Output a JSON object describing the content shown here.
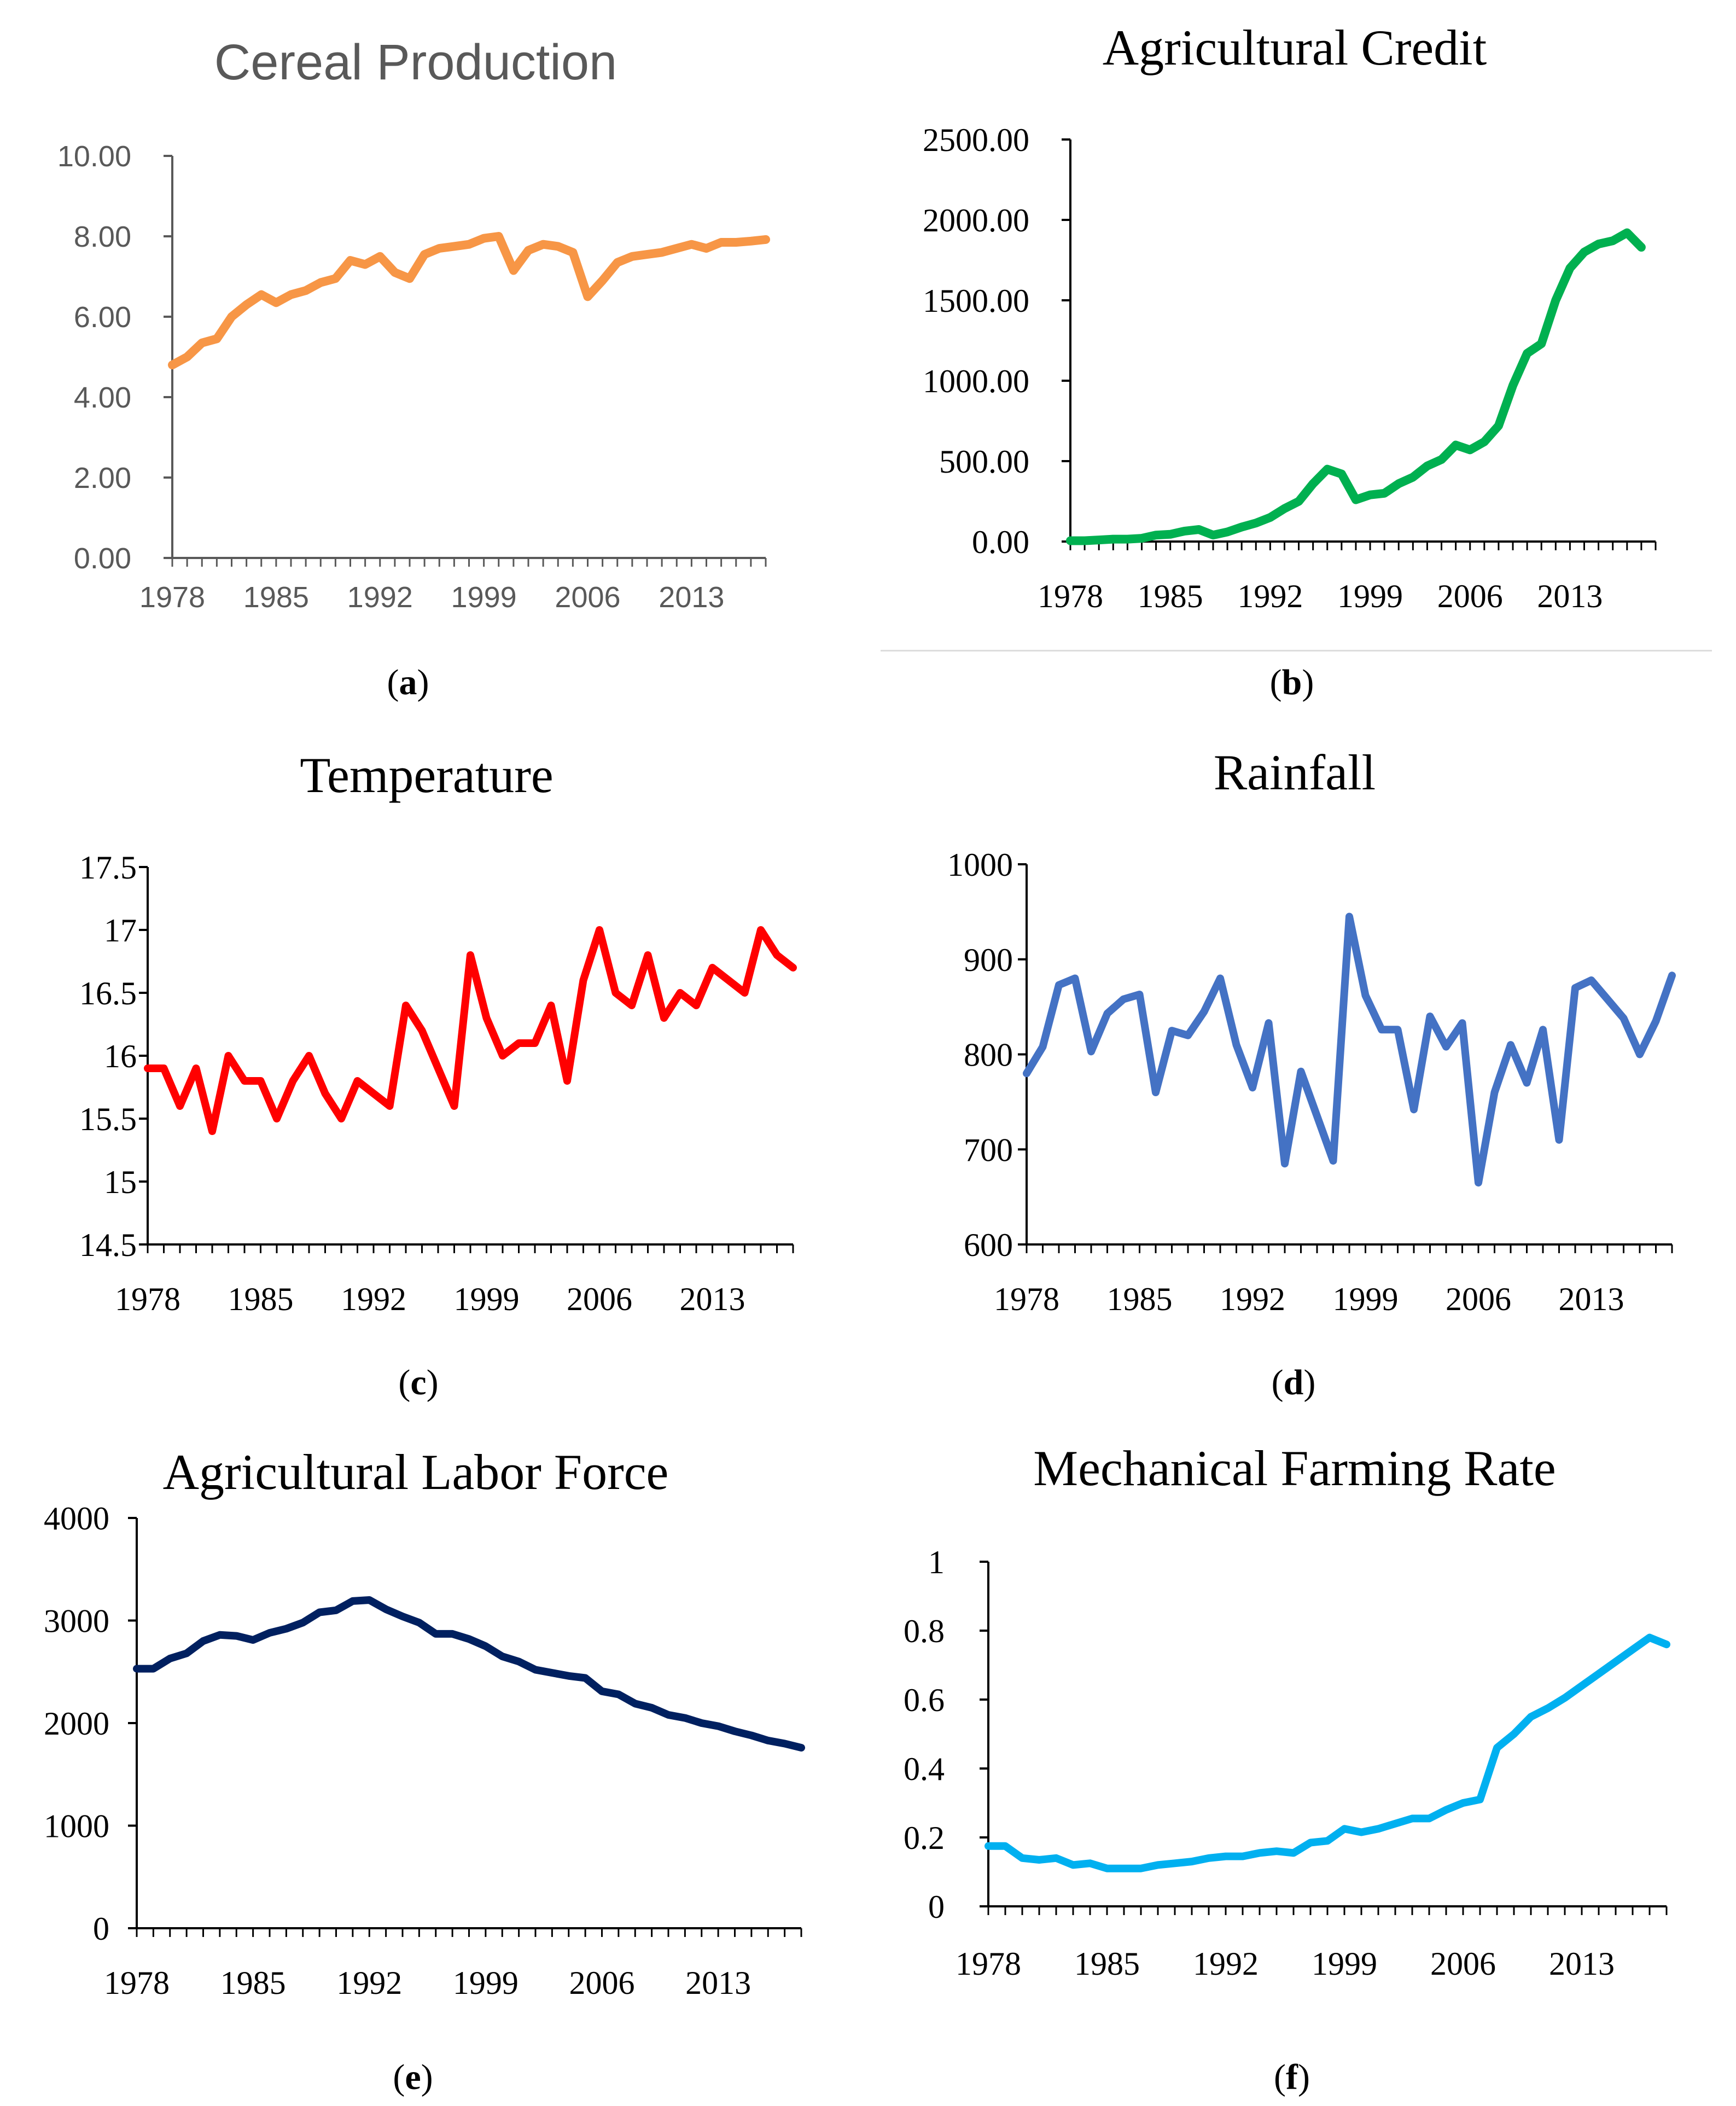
{
  "panels": [
    {
      "caption": "a",
      "chart_data": {
        "type": "line",
        "title": "Cereal Production",
        "xlabel": "",
        "ylabel": "",
        "ylim": [
          0,
          10
        ],
        "y_ticks": [
          "0.00",
          "2.00",
          "4.00",
          "6.00",
          "8.00",
          "10.00"
        ],
        "x_ticks": [
          "1978",
          "1985",
          "1992",
          "1999",
          "2006",
          "2013"
        ],
        "xlim": [
          1978,
          2018
        ],
        "color": "#F79646",
        "series": [
          {
            "x": [
              1978,
              1979,
              1980,
              1981,
              1982,
              1983,
              1984,
              1985,
              1986,
              1987,
              1988,
              1989,
              1990,
              1991,
              1992,
              1993,
              1994,
              1995,
              1996,
              1997,
              1998,
              1999,
              2000,
              2001,
              2002,
              2003,
              2004,
              2005,
              2006,
              2007,
              2008,
              2009,
              2010,
              2011,
              2012,
              2013,
              2014,
              2015,
              2016,
              2017,
              2018
            ],
            "values": [
              4.8,
              5.0,
              5.35,
              5.45,
              6.0,
              6.3,
              6.55,
              6.35,
              6.55,
              6.65,
              6.85,
              6.95,
              7.4,
              7.3,
              7.5,
              7.1,
              6.95,
              7.55,
              7.7,
              7.75,
              7.8,
              7.95,
              8.0,
              7.15,
              7.65,
              7.8,
              7.75,
              7.6,
              6.5,
              6.9,
              7.35,
              7.5,
              7.55,
              7.6,
              7.7,
              7.8,
              7.7,
              7.85,
              7.85,
              7.88,
              7.92
            ]
          }
        ]
      }
    },
    {
      "caption": "b",
      "chart_data": {
        "type": "line",
        "title": "Agricultural Credit",
        "xlabel": "",
        "ylabel": "",
        "ylim": [
          0,
          2500
        ],
        "y_ticks": [
          "0.00",
          "500.00",
          "1000.00",
          "1500.00",
          "2000.00",
          "2500.00"
        ],
        "x_ticks": [
          "1978",
          "1985",
          "1992",
          "1999",
          "2006",
          "2013"
        ],
        "xlim": [
          1978,
          2019
        ],
        "color": "#00B050",
        "series": [
          {
            "x": [
              1978,
              1979,
              1980,
              1981,
              1982,
              1983,
              1984,
              1985,
              1986,
              1987,
              1988,
              1989,
              1990,
              1991,
              1992,
              1993,
              1994,
              1995,
              1996,
              1997,
              1998,
              1999,
              2000,
              2001,
              2002,
              2003,
              2004,
              2005,
              2006,
              2007,
              2008,
              2009,
              2010,
              2011,
              2012,
              2013,
              2014,
              2015,
              2016,
              2017,
              2018
            ],
            "values": [
              5,
              5,
              10,
              15,
              15,
              20,
              40,
              45,
              65,
              75,
              40,
              60,
              90,
              115,
              150,
              205,
              250,
              360,
              450,
              420,
              260,
              290,
              300,
              360,
              400,
              470,
              510,
              600,
              570,
              620,
              720,
              970,
              1170,
              1230,
              1500,
              1700,
              1800,
              1850,
              1870,
              1920,
              1830
            ]
          }
        ]
      }
    },
    {
      "caption": "c",
      "chart_data": {
        "type": "line",
        "title": "Temperature",
        "xlabel": "",
        "ylabel": "",
        "ylim": [
          14.5,
          17.5
        ],
        "y_ticks": [
          "14.5",
          "15",
          "15.5",
          "16",
          "16.5",
          "17",
          "17.5"
        ],
        "x_ticks": [
          "1978",
          "1985",
          "1992",
          "1999",
          "2006",
          "2013"
        ],
        "xlim": [
          1978,
          2018
        ],
        "color": "#FF0000",
        "series": [
          {
            "x": [
              1978,
              1979,
              1980,
              1981,
              1982,
              1983,
              1984,
              1985,
              1986,
              1987,
              1988,
              1989,
              1990,
              1991,
              1992,
              1993,
              1994,
              1995,
              1996,
              1997,
              1998,
              1999,
              2000,
              2001,
              2002,
              2003,
              2004,
              2005,
              2006,
              2007,
              2008,
              2009,
              2010,
              2011,
              2012,
              2013,
              2014,
              2015,
              2016,
              2017,
              2018
            ],
            "values": [
              15.9,
              15.9,
              15.6,
              15.9,
              15.4,
              16.0,
              15.8,
              15.8,
              15.5,
              15.8,
              16.0,
              15.7,
              15.5,
              15.8,
              15.7,
              15.6,
              16.4,
              16.2,
              15.9,
              15.6,
              16.8,
              16.3,
              16.0,
              16.1,
              16.1,
              16.4,
              15.8,
              16.6,
              17.0,
              16.5,
              16.4,
              16.8,
              16.3,
              16.5,
              16.4,
              16.7,
              16.6,
              16.5,
              17.0,
              16.8,
              16.7
            ]
          }
        ]
      }
    },
    {
      "caption": "d",
      "chart_data": {
        "type": "line",
        "title": "Rainfall",
        "xlabel": "",
        "ylabel": "",
        "ylim": [
          600,
          1000
        ],
        "y_ticks": [
          "600",
          "700",
          "800",
          "900",
          "1000"
        ],
        "x_ticks": [
          "1978",
          "1985",
          "1992",
          "1999",
          "2006",
          "2013"
        ],
        "xlim": [
          1978,
          2018
        ],
        "color": "#4472C4",
        "series": [
          {
            "x": [
              1978,
              1979,
              1980,
              1981,
              1982,
              1983,
              1984,
              1985,
              1986,
              1987,
              1988,
              1989,
              1990,
              1991,
              1992,
              1993,
              1994,
              1995,
              1996,
              1997,
              1998,
              1999,
              2000,
              2001,
              2002,
              2003,
              2004,
              2005,
              2006,
              2007,
              2008,
              2009,
              2010,
              2011,
              2012,
              2013,
              2014,
              2015,
              2016,
              2017,
              2018
            ],
            "values": [
              780,
              808,
              873,
              880,
              803,
              843,
              858,
              863,
              760,
              825,
              820,
              845,
              880,
              810,
              765,
              833,
              685,
              782,
              735,
              688,
              945,
              862,
              826,
              826,
              742,
              840,
              808,
              833,
              665,
              760,
              810,
              770,
              826,
              710,
              870,
              878,
              858,
              838,
              800,
              835,
              883
            ]
          }
        ]
      }
    },
    {
      "caption": "e",
      "chart_data": {
        "type": "line",
        "title": "Agricultural Labor Force",
        "xlabel": "",
        "ylabel": "",
        "ylim": [
          0,
          4000
        ],
        "y_ticks": [
          "0",
          "1000",
          "2000",
          "3000",
          "4000"
        ],
        "x_ticks": [
          "1978",
          "1985",
          "1992",
          "1999",
          "2006",
          "2013"
        ],
        "xlim": [
          1978,
          2018
        ],
        "color": "#002060",
        "series": [
          {
            "x": [
              1978,
              1979,
              1980,
              1981,
              1982,
              1983,
              1984,
              1985,
              1986,
              1987,
              1988,
              1989,
              1990,
              1991,
              1992,
              1993,
              1994,
              1995,
              1996,
              1997,
              1998,
              1999,
              2000,
              2001,
              2002,
              2003,
              2004,
              2005,
              2006,
              2007,
              2008,
              2009,
              2010,
              2011,
              2012,
              2013,
              2014,
              2015,
              2016,
              2017,
              2018
            ],
            "values": [
              2530,
              2530,
              2630,
              2680,
              2800,
              2860,
              2850,
              2810,
              2880,
              2920,
              2980,
              3080,
              3100,
              3190,
              3200,
              3110,
              3040,
              2980,
              2870,
              2870,
              2820,
              2750,
              2650,
              2600,
              2520,
              2490,
              2460,
              2440,
              2310,
              2280,
              2190,
              2150,
              2080,
              2050,
              2000,
              1970,
              1920,
              1880,
              1830,
              1800,
              1760
            ]
          }
        ]
      }
    },
    {
      "caption": "f",
      "chart_data": {
        "type": "line",
        "title": "Mechanical Farming Rate",
        "xlabel": "",
        "ylabel": "",
        "ylim": [
          0,
          1
        ],
        "y_ticks": [
          "0",
          "0.2",
          "0.4",
          "0.6",
          "0.8",
          "1"
        ],
        "x_ticks": [
          "1978",
          "1985",
          "1992",
          "1999",
          "2006",
          "2013"
        ],
        "xlim": [
          1978,
          2018
        ],
        "color": "#00B0F0",
        "series": [
          {
            "x": [
              1978,
              1979,
              1980,
              1981,
              1982,
              1983,
              1984,
              1985,
              1986,
              1987,
              1988,
              1989,
              1990,
              1991,
              1992,
              1993,
              1994,
              1995,
              1996,
              1997,
              1998,
              1999,
              2000,
              2001,
              2002,
              2003,
              2004,
              2005,
              2006,
              2007,
              2008,
              2009,
              2010,
              2011,
              2012,
              2013,
              2014,
              2015,
              2016,
              2017,
              2018
            ],
            "values": [
              0.175,
              0.175,
              0.14,
              0.135,
              0.14,
              0.12,
              0.125,
              0.11,
              0.11,
              0.11,
              0.12,
              0.125,
              0.13,
              0.14,
              0.145,
              0.145,
              0.155,
              0.16,
              0.155,
              0.185,
              0.19,
              0.225,
              0.215,
              0.225,
              0.24,
              0.255,
              0.255,
              0.28,
              0.3,
              0.31,
              0.46,
              0.5,
              0.55,
              0.575,
              0.605,
              0.64,
              0.675,
              0.71,
              0.745,
              0.78,
              0.76
            ]
          }
        ]
      }
    }
  ]
}
